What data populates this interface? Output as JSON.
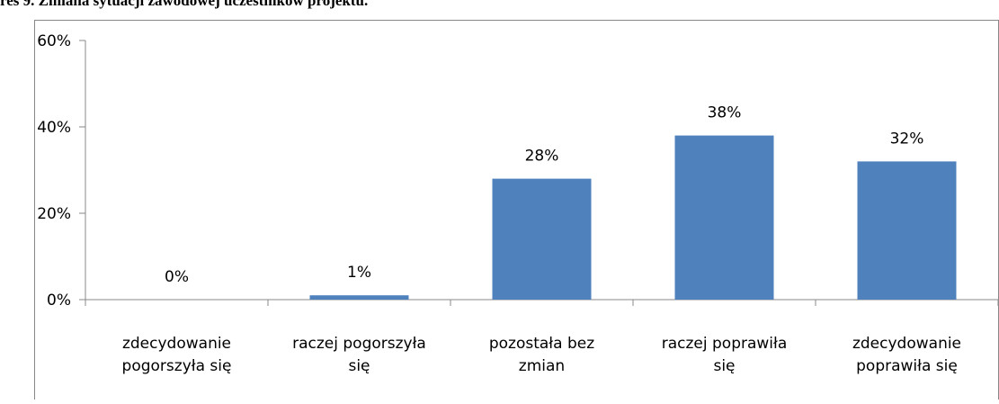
{
  "chart_data": {
    "type": "bar",
    "title": "res 9. Zmiana sytuacji zawodowej uczestników projektu.",
    "categories": [
      "zdecydowanie\npogorszyła się",
      "raczej pogorszyła\nsię",
      "pozostała bez\nzmian",
      "raczej poprawiła\nsię",
      "zdecydowanie\npoprawiła się"
    ],
    "values": [
      0,
      1,
      28,
      38,
      32
    ],
    "value_labels": [
      "0%",
      "1%",
      "28%",
      "38%",
      "32%"
    ],
    "color": "#4f81bd",
    "ylim": [
      0,
      60
    ],
    "yticks": [
      {
        "value": 0,
        "label": "0%"
      },
      {
        "value": 20,
        "label": "20%"
      },
      {
        "value": 40,
        "label": "40%"
      },
      {
        "value": 60,
        "label": "60%"
      }
    ],
    "grid": false
  }
}
